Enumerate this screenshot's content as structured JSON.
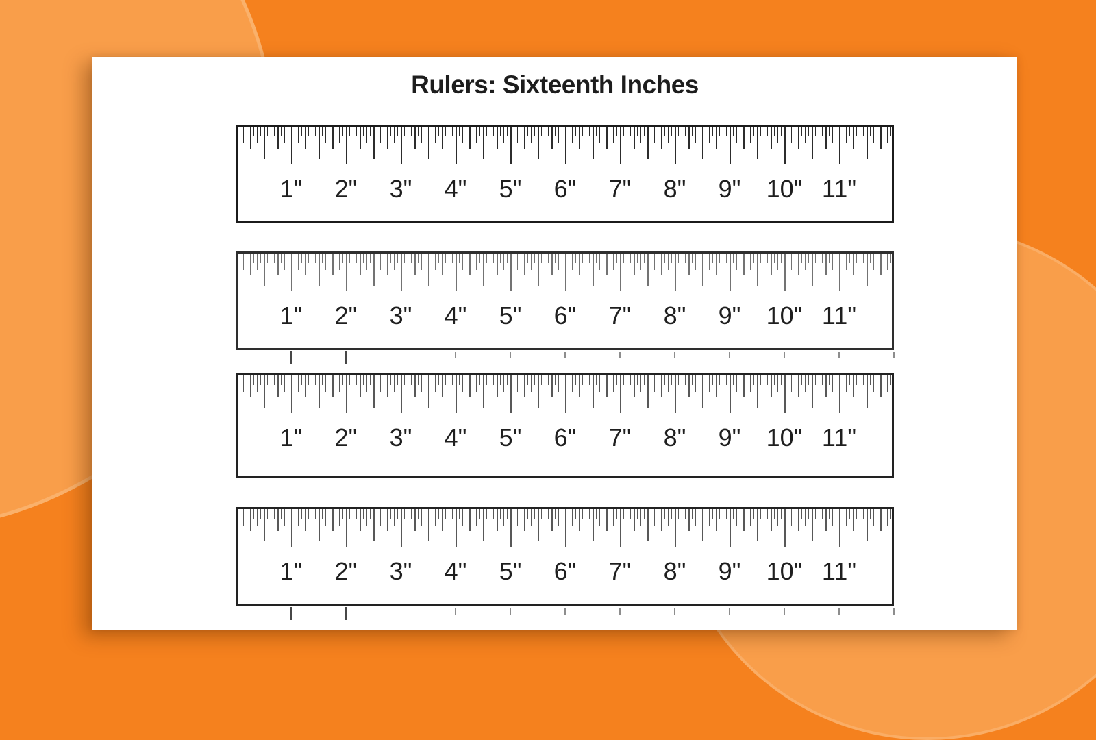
{
  "page": {
    "title": "Rulers: Sixteenth Inches"
  },
  "ruler": {
    "unit": "inch",
    "subdivision": "sixteenth",
    "inches": 12,
    "labels": [
      "1\"",
      "2\"",
      "3\"",
      "4\"",
      "5\"",
      "6\"",
      "7\"",
      "8\"",
      "9\"",
      "10\"",
      "11\""
    ]
  },
  "rulers": [
    {
      "id": "ruler-1"
    },
    {
      "id": "ruler-2"
    },
    {
      "id": "ruler-3"
    },
    {
      "id": "ruler-4"
    }
  ],
  "divider_rows": {
    "tall_inches": [
      1,
      2
    ],
    "short_inches": [
      4,
      5,
      6,
      7,
      8,
      9,
      10,
      11,
      12
    ]
  },
  "colors": {
    "background": "#f5811e",
    "background_light": "#f99e4a",
    "paper": "#ffffff",
    "ink": "#1d1d1d"
  }
}
